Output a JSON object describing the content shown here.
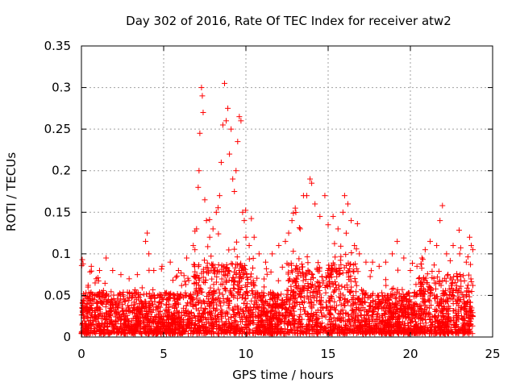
{
  "chart_data": {
    "type": "scatter",
    "title": "Day 302 of 2016, Rate Of TEC Index for receiver atw2",
    "xlabel": "GPS time / hours",
    "ylabel": "ROTI / TECUs",
    "xlim": [
      0,
      25
    ],
    "ylim": [
      0,
      0.35
    ],
    "xticks": [
      0,
      5,
      10,
      15,
      20,
      25
    ],
    "xtick_labels": [
      "0",
      "5",
      "10",
      "15",
      "20",
      "25"
    ],
    "yticks": [
      0,
      0.05,
      0.1,
      0.15,
      0.2,
      0.25,
      0.3,
      0.35
    ],
    "ytick_labels": [
      "0",
      "0.05",
      "0.1",
      "0.15",
      "0.2",
      "0.25",
      "0.3",
      "0.35"
    ],
    "grid": true,
    "marker": "+",
    "series_color": "#ff0000",
    "data_range_x": [
      0,
      23.8
    ],
    "series": [
      {
        "name": "ROTI",
        "points": [
          [
            0.05,
            0.093
          ],
          [
            0.1,
            0.088
          ],
          [
            0.4,
            0.06
          ],
          [
            0.6,
            0.085
          ],
          [
            0.9,
            0.07
          ],
          [
            1.1,
            0.08
          ],
          [
            1.5,
            0.095
          ],
          [
            1.9,
            0.08
          ],
          [
            2.4,
            0.075
          ],
          [
            2.9,
            0.07
          ],
          [
            3.4,
            0.075
          ],
          [
            3.9,
            0.115
          ],
          [
            4.0,
            0.125
          ],
          [
            4.1,
            0.1
          ],
          [
            4.4,
            0.08
          ],
          [
            4.9,
            0.085
          ],
          [
            5.4,
            0.09
          ],
          [
            5.9,
            0.08
          ],
          [
            6.4,
            0.095
          ],
          [
            6.8,
            0.11
          ],
          [
            6.9,
            0.105
          ],
          [
            7.0,
            0.13
          ],
          [
            7.1,
            0.18
          ],
          [
            7.15,
            0.2
          ],
          [
            7.2,
            0.245
          ],
          [
            7.3,
            0.3
          ],
          [
            7.35,
            0.29
          ],
          [
            7.4,
            0.27
          ],
          [
            7.5,
            0.165
          ],
          [
            7.6,
            0.14
          ],
          [
            7.8,
            0.12
          ],
          [
            8.0,
            0.13
          ],
          [
            8.2,
            0.15
          ],
          [
            8.4,
            0.17
          ],
          [
            8.5,
            0.21
          ],
          [
            8.6,
            0.255
          ],
          [
            8.7,
            0.305
          ],
          [
            8.8,
            0.26
          ],
          [
            8.9,
            0.275
          ],
          [
            9.0,
            0.22
          ],
          [
            9.1,
            0.25
          ],
          [
            9.2,
            0.19
          ],
          [
            9.3,
            0.175
          ],
          [
            9.4,
            0.2
          ],
          [
            9.5,
            0.235
          ],
          [
            9.6,
            0.265
          ],
          [
            9.7,
            0.26
          ],
          [
            9.8,
            0.15
          ],
          [
            9.9,
            0.14
          ],
          [
            10.0,
            0.12
          ],
          [
            10.2,
            0.11
          ],
          [
            10.5,
            0.12
          ],
          [
            10.8,
            0.1
          ],
          [
            11.2,
            0.09
          ],
          [
            11.6,
            0.1
          ],
          [
            12.0,
            0.11
          ],
          [
            12.4,
            0.115
          ],
          [
            12.6,
            0.125
          ],
          [
            12.8,
            0.14
          ],
          [
            13.0,
            0.155
          ],
          [
            13.3,
            0.13
          ],
          [
            13.5,
            0.17
          ],
          [
            13.7,
            0.17
          ],
          [
            13.9,
            0.19
          ],
          [
            14.0,
            0.185
          ],
          [
            14.2,
            0.16
          ],
          [
            14.5,
            0.145
          ],
          [
            14.8,
            0.17
          ],
          [
            15.0,
            0.135
          ],
          [
            15.3,
            0.145
          ],
          [
            15.6,
            0.13
          ],
          [
            15.9,
            0.15
          ],
          [
            16.0,
            0.17
          ],
          [
            16.2,
            0.16
          ],
          [
            16.4,
            0.14
          ],
          [
            16.6,
            0.11
          ],
          [
            16.9,
            0.1
          ],
          [
            17.3,
            0.09
          ],
          [
            17.7,
            0.09
          ],
          [
            18.1,
            0.085
          ],
          [
            18.5,
            0.09
          ],
          [
            18.9,
            0.1
          ],
          [
            19.2,
            0.115
          ],
          [
            19.6,
            0.095
          ],
          [
            20.0,
            0.08
          ],
          [
            20.4,
            0.085
          ],
          [
            20.7,
            0.095
          ],
          [
            20.9,
            0.105
          ],
          [
            21.2,
            0.115
          ],
          [
            21.6,
            0.11
          ],
          [
            21.8,
            0.14
          ],
          [
            21.95,
            0.158
          ],
          [
            22.2,
            0.1
          ],
          [
            22.6,
            0.11
          ],
          [
            23.0,
            0.1
          ],
          [
            23.4,
            0.09
          ],
          [
            23.6,
            0.12
          ],
          [
            23.7,
            0.11
          ],
          [
            23.8,
            0.105
          ]
        ]
      }
    ]
  }
}
